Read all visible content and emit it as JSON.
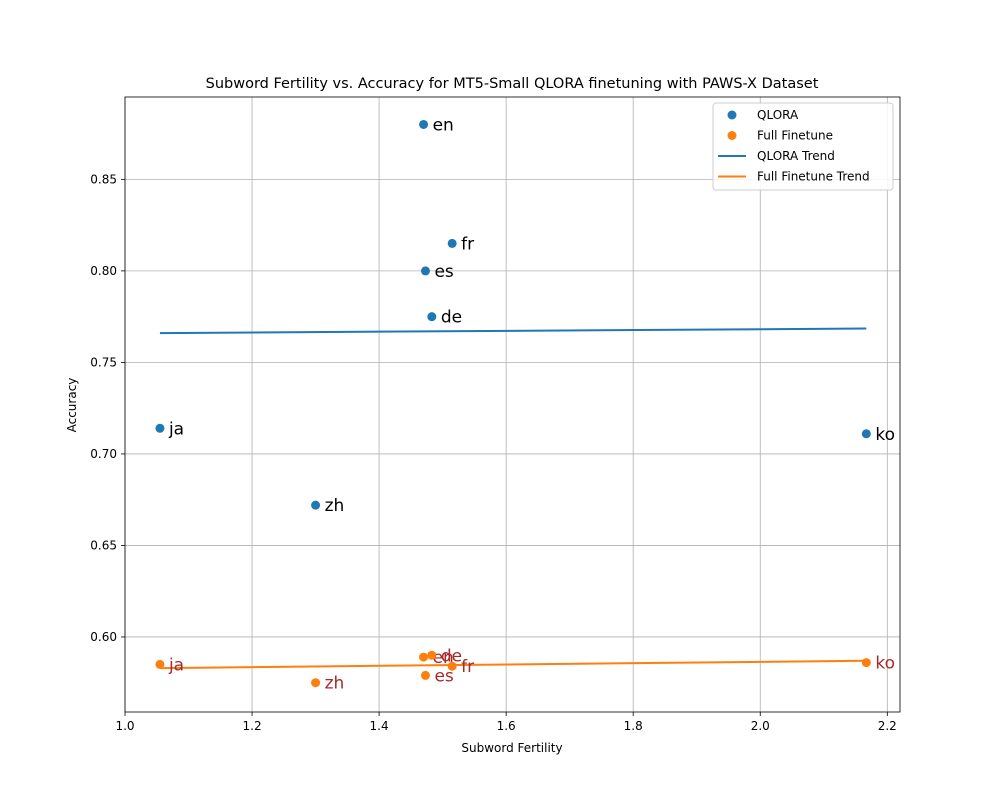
{
  "chart_data": {
    "type": "scatter",
    "title": "Subword Fertility vs. Accuracy for MT5-Small QLORA finetuning with PAWS-X Dataset",
    "xlabel": "Subword Fertility",
    "ylabel": "Accuracy",
    "xlim": [
      1.0,
      2.22
    ],
    "ylim": [
      0.559,
      0.895
    ],
    "xticks": [
      "1.0",
      "1.2",
      "1.4",
      "1.6",
      "1.8",
      "2.0",
      "2.2"
    ],
    "yticks": [
      "0.60",
      "0.65",
      "0.70",
      "0.75",
      "0.80",
      "0.85"
    ],
    "grid": true,
    "legend_position": "top-right",
    "series": [
      {
        "name": "QLORA",
        "color": "#1f77b4",
        "label_color": "#000000",
        "points": [
          {
            "label": "en",
            "x": 1.47,
            "y": 0.88
          },
          {
            "label": "fr",
            "x": 1.515,
            "y": 0.815
          },
          {
            "label": "es",
            "x": 1.473,
            "y": 0.8
          },
          {
            "label": "de",
            "x": 1.483,
            "y": 0.775
          },
          {
            "label": "ja",
            "x": 1.055,
            "y": 0.714
          },
          {
            "label": "ko",
            "x": 2.167,
            "y": 0.711
          },
          {
            "label": "zh",
            "x": 1.3,
            "y": 0.672
          }
        ]
      },
      {
        "name": "Full Finetune",
        "color": "#ff7f0e",
        "label_color": "#a52a2a",
        "points": [
          {
            "label": "en",
            "x": 1.47,
            "y": 0.589
          },
          {
            "label": "fr",
            "x": 1.515,
            "y": 0.584
          },
          {
            "label": "es",
            "x": 1.473,
            "y": 0.579
          },
          {
            "label": "de",
            "x": 1.483,
            "y": 0.59
          },
          {
            "label": "ja",
            "x": 1.055,
            "y": 0.585
          },
          {
            "label": "ko",
            "x": 2.167,
            "y": 0.586
          },
          {
            "label": "zh",
            "x": 1.3,
            "y": 0.575
          }
        ]
      }
    ],
    "trends": [
      {
        "name": "QLORA Trend",
        "color": "#1f77b4",
        "x": [
          1.055,
          2.167
        ],
        "y": [
          0.766,
          0.7685
        ]
      },
      {
        "name": "Full Finetune Trend",
        "color": "#ff7f0e",
        "x": [
          1.055,
          2.167
        ],
        "y": [
          0.583,
          0.587
        ]
      }
    ]
  }
}
